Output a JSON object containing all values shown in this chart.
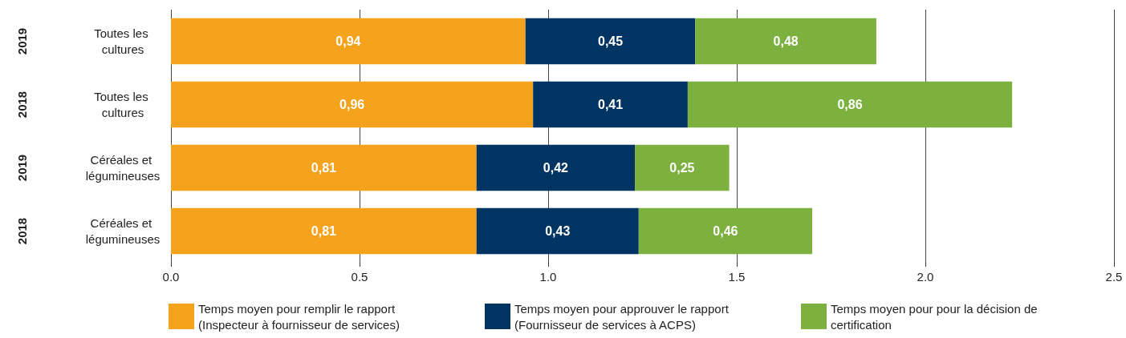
{
  "chart_data": {
    "type": "bar",
    "orientation": "horizontal",
    "stacked": true,
    "categories": [
      "Toutes les cultures",
      "Toutes les cultures",
      "Céréales et légumineuses",
      "Céréales et légumineuses"
    ],
    "annotations": [
      "2019",
      "2018",
      "2019",
      "2018"
    ],
    "series": [
      {
        "name": "Temps moyen pour remplir le rapport (Inspecteur à fournisseur de services)",
        "color": "#f5a31c",
        "values": [
          0.94,
          0.96,
          0.81,
          0.81
        ],
        "value_labels": [
          "0,94",
          "0,96",
          "0,81",
          "0,81"
        ]
      },
      {
        "name": "Temps moyen pour approuver le rapport (Fournisseur de services à ACPS)",
        "color": "#003462",
        "values": [
          0.45,
          0.41,
          0.42,
          0.43
        ],
        "value_labels": [
          "0,45",
          "0,41",
          "0,42",
          "0,43"
        ]
      },
      {
        "name": "Temps moyen pour pour la décision de certification",
        "color": "#7cb03f",
        "values": [
          0.48,
          0.86,
          0.25,
          0.46
        ],
        "value_labels": [
          "0,48",
          "0,86",
          "0,25",
          "0,46"
        ]
      }
    ],
    "xlim": [
      0,
      2.5
    ],
    "xticks": [
      {
        "value": 0,
        "label": "0.0"
      },
      0.5,
      {
        "value": 1,
        "label": "1.0"
      },
      1.5,
      {
        "value": 2,
        "label": "2.0"
      },
      2.5
    ],
    "grid": "x",
    "legend": "bottom"
  }
}
